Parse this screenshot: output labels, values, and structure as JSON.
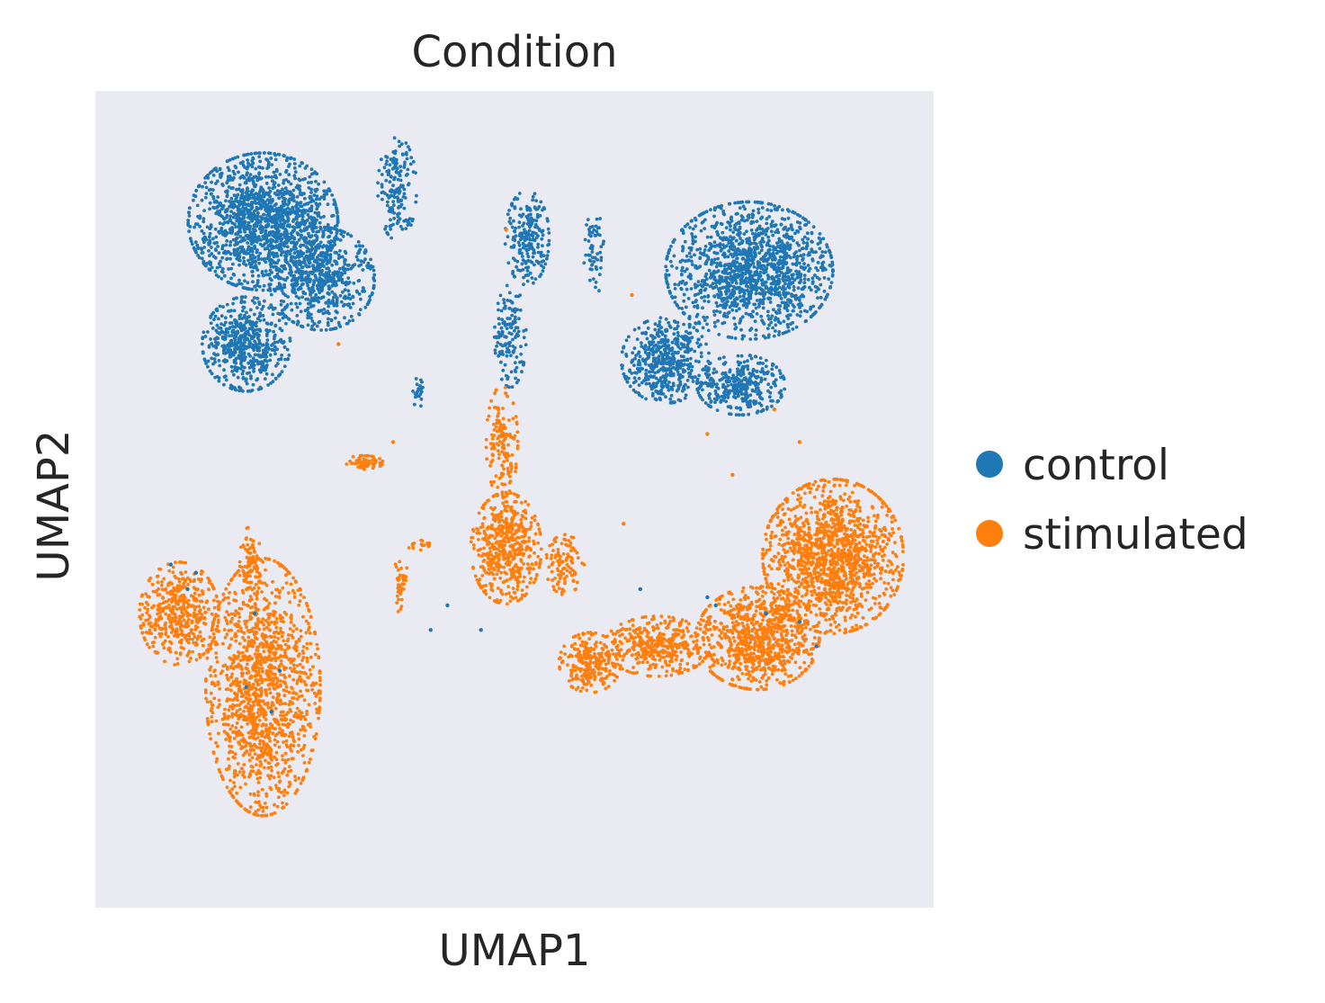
{
  "chart_data": {
    "type": "scatter",
    "title": "Condition",
    "xlabel": "UMAP1",
    "ylabel": "UMAP2",
    "xlim": [
      0,
      100
    ],
    "ylim": [
      0,
      100
    ],
    "grid": false,
    "legend_position": "right",
    "background_color": "#eaeaf2",
    "series": [
      {
        "name": "control",
        "color": "#1f77b4",
        "clusters": [
          {
            "cx": 20,
            "cy": 84,
            "rx": 8.5,
            "ry": 8,
            "n": 1500
          },
          {
            "cx": 27,
            "cy": 77,
            "rx": 6,
            "ry": 6,
            "n": 600
          },
          {
            "cx": 18,
            "cy": 69,
            "rx": 5,
            "ry": 5.5,
            "n": 550
          },
          {
            "cx": 36,
            "cy": 88,
            "rx": 2.2,
            "ry": 6,
            "n": 170
          },
          {
            "cx": 51.5,
            "cy": 82,
            "rx": 2.5,
            "ry": 5.5,
            "n": 220
          },
          {
            "cx": 49.5,
            "cy": 70,
            "rx": 1.8,
            "ry": 6,
            "n": 140
          },
          {
            "cx": 59.5,
            "cy": 80,
            "rx": 1.2,
            "ry": 5,
            "n": 60
          },
          {
            "cx": 78,
            "cy": 78,
            "rx": 9.5,
            "ry": 8,
            "n": 1400
          },
          {
            "cx": 68,
            "cy": 67,
            "rx": 5,
            "ry": 5,
            "n": 500
          },
          {
            "cx": 77,
            "cy": 64,
            "rx": 5,
            "ry": 3.5,
            "n": 350
          },
          {
            "cx": 38.5,
            "cy": 63,
            "rx": 0.6,
            "ry": 1.8,
            "n": 25
          }
        ],
        "strays": [
          [
            9,
            42
          ],
          [
            19,
            36
          ],
          [
            22,
            29
          ],
          [
            18,
            27
          ],
          [
            40,
            34
          ],
          [
            46,
            34
          ],
          [
            65,
            39
          ],
          [
            73,
            38
          ],
          [
            80,
            36
          ],
          [
            84,
            35
          ],
          [
            21,
            24
          ],
          [
            11,
            39
          ],
          [
            86,
            32
          ],
          [
            74,
            37
          ],
          [
            12,
            41
          ],
          [
            42,
            37
          ]
        ]
      },
      {
        "name": "stimulated",
        "color": "#ff7f0e",
        "clusters": [
          {
            "cx": 20,
            "cy": 27,
            "rx": 6.5,
            "ry": 15,
            "n": 1400
          },
          {
            "cx": 10,
            "cy": 36,
            "rx": 4.5,
            "ry": 6,
            "n": 450
          },
          {
            "cx": 18.5,
            "cy": 42,
            "rx": 1.2,
            "ry": 4.5,
            "n": 90
          },
          {
            "cx": 49,
            "cy": 44,
            "rx": 4,
            "ry": 6.5,
            "n": 520
          },
          {
            "cx": 48.5,
            "cy": 57,
            "rx": 1.8,
            "ry": 6.5,
            "n": 150
          },
          {
            "cx": 56,
            "cy": 42,
            "rx": 2.2,
            "ry": 3.5,
            "n": 110
          },
          {
            "cx": 59,
            "cy": 30,
            "rx": 3.5,
            "ry": 3.5,
            "n": 260
          },
          {
            "cx": 67,
            "cy": 32,
            "rx": 6,
            "ry": 3.5,
            "n": 380
          },
          {
            "cx": 79,
            "cy": 33,
            "rx": 7,
            "ry": 6,
            "n": 850
          },
          {
            "cx": 88,
            "cy": 43,
            "rx": 8,
            "ry": 9,
            "n": 1400
          },
          {
            "cx": 32,
            "cy": 54.5,
            "rx": 2.2,
            "ry": 0.8,
            "n": 55
          },
          {
            "cx": 36.5,
            "cy": 40,
            "rx": 0.8,
            "ry": 4,
            "n": 40
          },
          {
            "cx": 38.5,
            "cy": 44.5,
            "rx": 1.3,
            "ry": 0.7,
            "n": 18
          }
        ],
        "strays": [
          [
            29,
            69
          ],
          [
            49,
            83
          ],
          [
            64,
            75
          ],
          [
            73,
            58
          ],
          [
            84,
            57
          ],
          [
            76,
            53
          ],
          [
            81,
            61
          ],
          [
            35.5,
            57
          ],
          [
            57,
            44
          ],
          [
            63,
            47
          ]
        ]
      }
    ]
  }
}
